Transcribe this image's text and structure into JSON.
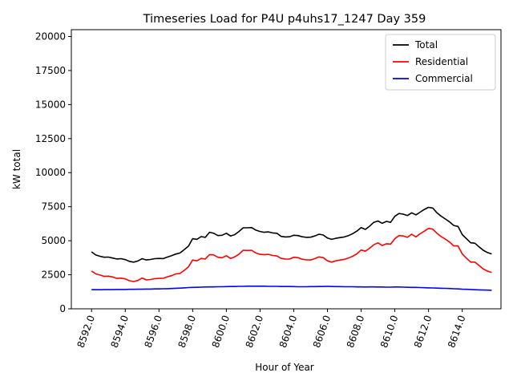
{
  "chart_data": {
    "type": "line",
    "title": "Timeseries Load for P4U p4uhs17_1247  Day 359",
    "xlabel": "Hour of Year",
    "ylabel": "kW total",
    "xlim": [
      8590.8,
      8616.3
    ],
    "ylim": [
      0,
      20500
    ],
    "xticks": [
      8592,
      8594,
      8596,
      8598,
      8600,
      8602,
      8604,
      8606,
      8608,
      8610,
      8612,
      8614
    ],
    "xtick_labels": [
      "8592.0",
      "8594.0",
      "8596.0",
      "8598.0",
      "8600.0",
      "8602.0",
      "8604.0",
      "8606.0",
      "8608.0",
      "8610.0",
      "8612.0",
      "8614.0"
    ],
    "yticks": [
      0,
      2500,
      5000,
      7500,
      10000,
      12500,
      15000,
      17500,
      20000
    ],
    "ytick_labels": [
      "0",
      "2500",
      "5000",
      "7500",
      "10000",
      "12500",
      "15000",
      "17500",
      "20000"
    ],
    "legend_position": "top-right",
    "x": [
      8592,
      8592.25,
      8592.5,
      8592.75,
      8593,
      8593.25,
      8593.5,
      8593.75,
      8594,
      8594.25,
      8594.5,
      8594.75,
      8595,
      8595.25,
      8595.5,
      8595.75,
      8596,
      8596.25,
      8596.5,
      8596.75,
      8597,
      8597.25,
      8597.5,
      8597.75,
      8598,
      8598.25,
      8598.5,
      8598.75,
      8599,
      8599.25,
      8599.5,
      8599.75,
      8600,
      8600.25,
      8600.5,
      8600.75,
      8601,
      8601.25,
      8601.5,
      8601.75,
      8602,
      8602.25,
      8602.5,
      8602.75,
      8603,
      8603.25,
      8603.5,
      8603.75,
      8604,
      8604.25,
      8604.5,
      8604.75,
      8605,
      8605.25,
      8605.5,
      8605.75,
      8606,
      8606.25,
      8606.5,
      8606.75,
      8607,
      8607.25,
      8607.5,
      8607.75,
      8608,
      8608.25,
      8608.5,
      8608.75,
      8609,
      8609.25,
      8609.5,
      8609.75,
      8610,
      8610.25,
      8610.5,
      8610.75,
      8611,
      8611.25,
      8611.5,
      8611.75,
      8612,
      8612.25,
      8612.5,
      8612.75,
      8613,
      8613.25,
      8613.5,
      8613.75,
      8614,
      8614.25,
      8614.5,
      8614.75,
      8615,
      8615.25,
      8615.5,
      8615.75
    ],
    "series": [
      {
        "name": "Total",
        "color": "#000000",
        "values": [
          4180,
          3950,
          3860,
          3790,
          3800,
          3730,
          3660,
          3680,
          3610,
          3480,
          3430,
          3510,
          3680,
          3590,
          3620,
          3680,
          3700,
          3690,
          3800,
          3900,
          4020,
          4100,
          4350,
          4600,
          5150,
          5100,
          5300,
          5250,
          5620,
          5550,
          5380,
          5400,
          5550,
          5350,
          5450,
          5680,
          5950,
          5950,
          5970,
          5780,
          5680,
          5620,
          5650,
          5570,
          5550,
          5320,
          5280,
          5290,
          5400,
          5380,
          5290,
          5250,
          5260,
          5350,
          5480,
          5420,
          5200,
          5100,
          5180,
          5230,
          5280,
          5380,
          5520,
          5710,
          5960,
          5830,
          6060,
          6350,
          6450,
          6280,
          6420,
          6350,
          6800,
          7000,
          6950,
          6850,
          7050,
          6900,
          7100,
          7300,
          7450,
          7400,
          7050,
          6800,
          6600,
          6380,
          6120,
          6050,
          5450,
          5150,
          4850,
          4820,
          4550,
          4300,
          4130,
          4030
        ]
      },
      {
        "name": "Residential",
        "color": "#ff0000",
        "values": [
          2780,
          2560,
          2480,
          2380,
          2400,
          2340,
          2230,
          2250,
          2200,
          2060,
          2000,
          2080,
          2260,
          2120,
          2150,
          2210,
          2230,
          2240,
          2350,
          2430,
          2560,
          2600,
          2820,
          3080,
          3580,
          3520,
          3700,
          3650,
          3980,
          3960,
          3780,
          3750,
          3900,
          3700,
          3820,
          4010,
          4300,
          4280,
          4300,
          4100,
          4000,
          3970,
          4000,
          3920,
          3880,
          3700,
          3660,
          3650,
          3780,
          3760,
          3640,
          3600,
          3590,
          3680,
          3810,
          3760,
          3520,
          3430,
          3520,
          3580,
          3630,
          3730,
          3860,
          4040,
          4320,
          4230,
          4440,
          4700,
          4840,
          4650,
          4780,
          4750,
          5150,
          5380,
          5350,
          5250,
          5480,
          5280,
          5510,
          5700,
          5900,
          5850,
          5550,
          5300,
          5120,
          4900,
          4620,
          4620,
          4030,
          3720,
          3430,
          3430,
          3180,
          2920,
          2770,
          2660
        ]
      },
      {
        "name": "Commercial",
        "color": "#0000ff",
        "values": [
          1400,
          1400,
          1400,
          1410,
          1410,
          1410,
          1420,
          1420,
          1420,
          1430,
          1430,
          1440,
          1440,
          1450,
          1450,
          1460,
          1460,
          1470,
          1480,
          1490,
          1510,
          1520,
          1540,
          1560,
          1570,
          1580,
          1590,
          1600,
          1610,
          1610,
          1620,
          1620,
          1630,
          1640,
          1640,
          1650,
          1650,
          1660,
          1660,
          1660,
          1660,
          1660,
          1650,
          1650,
          1650,
          1640,
          1640,
          1640,
          1630,
          1620,
          1620,
          1620,
          1630,
          1630,
          1640,
          1640,
          1650,
          1640,
          1630,
          1630,
          1620,
          1620,
          1620,
          1610,
          1610,
          1600,
          1610,
          1610,
          1600,
          1600,
          1590,
          1590,
          1600,
          1600,
          1590,
          1580,
          1570,
          1570,
          1560,
          1550,
          1540,
          1530,
          1520,
          1510,
          1500,
          1490,
          1470,
          1460,
          1440,
          1430,
          1420,
          1400,
          1390,
          1380,
          1370,
          1360
        ]
      }
    ]
  }
}
